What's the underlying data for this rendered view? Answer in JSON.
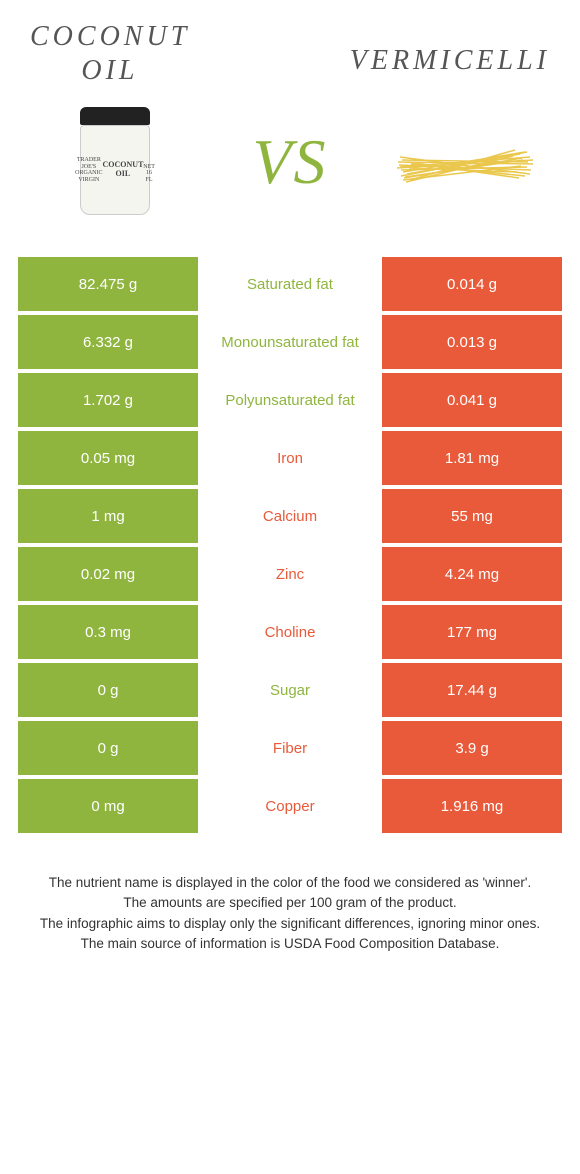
{
  "colors": {
    "left": "#8fb53f",
    "right": "#e85a3a",
    "background": "#ffffff"
  },
  "left": {
    "title": "Coconut oil"
  },
  "right": {
    "title": "Vermicelli"
  },
  "vs": "VS",
  "rows": [
    {
      "left": "82.475 g",
      "label": "Saturated fat",
      "right": "0.014 g",
      "winner": "left"
    },
    {
      "left": "6.332 g",
      "label": "Monounsaturated fat",
      "right": "0.013 g",
      "winner": "left"
    },
    {
      "left": "1.702 g",
      "label": "Polyunsaturated fat",
      "right": "0.041 g",
      "winner": "left"
    },
    {
      "left": "0.05 mg",
      "label": "Iron",
      "right": "1.81 mg",
      "winner": "right"
    },
    {
      "left": "1 mg",
      "label": "Calcium",
      "right": "55 mg",
      "winner": "right"
    },
    {
      "left": "0.02 mg",
      "label": "Zinc",
      "right": "4.24 mg",
      "winner": "right"
    },
    {
      "left": "0.3 mg",
      "label": "Choline",
      "right": "177 mg",
      "winner": "right"
    },
    {
      "left": "0 g",
      "label": "Sugar",
      "right": "17.44 g",
      "winner": "left"
    },
    {
      "left": "0 g",
      "label": "Fiber",
      "right": "3.9 g",
      "winner": "right"
    },
    {
      "left": "0 mg",
      "label": "Copper",
      "right": "1.916 mg",
      "winner": "right"
    }
  ],
  "footer": [
    "The nutrient name is displayed in the color of the food we considered as 'winner'.",
    "The amounts are specified per 100 gram of the product.",
    "The infographic aims to display only the significant differences, ignoring minor ones.",
    "The main source of information is USDA Food Composition Database."
  ]
}
